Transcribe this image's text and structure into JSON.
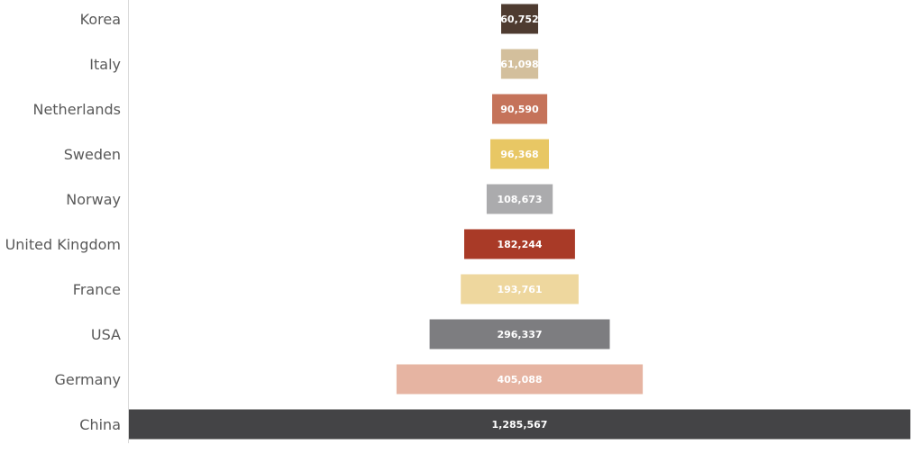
{
  "chart_data": {
    "type": "bar",
    "orientation": "horizontal",
    "layout": "funnel",
    "title": "",
    "xlabel": "",
    "ylabel": "",
    "grid": false,
    "legend": "none",
    "categories": [
      "Korea",
      "Italy",
      "Netherlands",
      "Sweden",
      "Norway",
      "United Kingdom",
      "France",
      "USA",
      "Germany",
      "China"
    ],
    "values": [
      60752,
      61098,
      90590,
      96368,
      108673,
      182244,
      193761,
      296337,
      405088,
      1285567
    ],
    "value_labels": [
      "60,752",
      "61,098",
      "90,590",
      "96,368",
      "108,673",
      "182,244",
      "193,761",
      "296,337",
      "405,088",
      "1,285,567"
    ],
    "colors": [
      "#4e3b30",
      "#d3bf9c",
      "#c5735a",
      "#e8c764",
      "#ababad",
      "#a93a27",
      "#eed79e",
      "#7d7d80",
      "#e6b4a2",
      "#444446"
    ],
    "xlim": [
      0,
      1285567
    ]
  }
}
